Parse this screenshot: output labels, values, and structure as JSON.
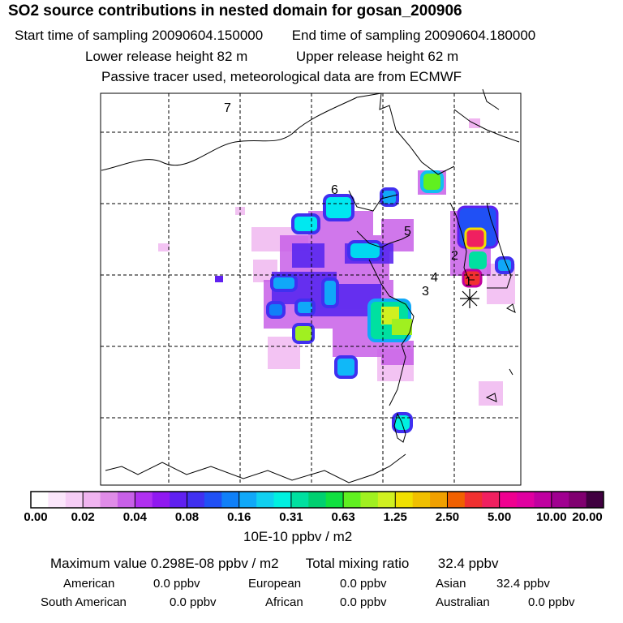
{
  "header": {
    "title": "SO2 source contributions in nested domain for gosan_200906",
    "start_label": "Start time of sampling 20090604.150000",
    "end_label": "End time of sampling 20090604.180000",
    "lower_label": "Lower release height   82 m",
    "upper_label": "Upper release height   62 m",
    "tracer_note": "Passive tracer used, meteorological data are from ECMWF"
  },
  "map": {
    "site_numbers": [
      "7",
      "6",
      "5",
      "2",
      "4",
      "3",
      "1"
    ],
    "receptor_icon": "asterisk-receptor-icon"
  },
  "colorbar": {
    "labels": [
      "0.00",
      "0.02",
      "0.04",
      "0.08",
      "0.16",
      "0.31",
      "0.63",
      "1.25",
      "2.50",
      "5.00",
      "10.00",
      "20.00"
    ],
    "colors": [
      "#ffffff",
      "#fbe6fb",
      "#f6cdf6",
      "#f0b4f0",
      "#e08ce8",
      "#c860e8",
      "#b030f0",
      "#9018f0",
      "#6020f0",
      "#4030f0",
      "#2050f5",
      "#1080f8",
      "#10a8f8",
      "#10d0f0",
      "#00f0e0",
      "#00e0a0",
      "#00d070",
      "#10e040",
      "#60f020",
      "#a0f020",
      "#d0f020",
      "#f0e000",
      "#f0c000",
      "#f0a000",
      "#f06000",
      "#f03030",
      "#f02060",
      "#f00090",
      "#e000a0",
      "#c000a0",
      "#a00090",
      "#800070",
      "#400040"
    ],
    "units": "10E-10 ppbv / m2"
  },
  "stats": {
    "max_label": "Maximum value",
    "max_value": "0.298E-08 ppbv / m2",
    "total_label": "Total mixing ratio",
    "total_value": "32.4 ppbv",
    "regions": [
      {
        "name": "American",
        "value": "0.0 ppbv"
      },
      {
        "name": "European",
        "value": "0.0 ppbv"
      },
      {
        "name": "Asian",
        "value": "32.4 ppbv"
      },
      {
        "name": "South American",
        "value": "0.0 ppbv"
      },
      {
        "name": "African",
        "value": "0.0 ppbv"
      },
      {
        "name": "Australian",
        "value": "0.0 ppbv"
      }
    ]
  }
}
